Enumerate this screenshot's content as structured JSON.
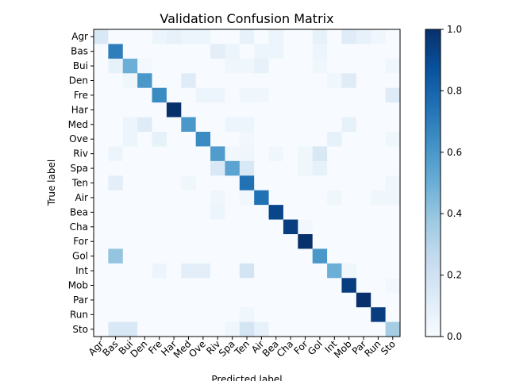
{
  "chart_data": {
    "type": "heatmap",
    "title": "Validation Confusion Matrix",
    "xlabel": "Predicted label",
    "ylabel": "True label",
    "labels": [
      "Agr",
      "Bas",
      "Bui",
      "Den",
      "Fre",
      "Har",
      "Med",
      "Ove",
      "Riv",
      "Spa",
      "Ten",
      "Air",
      "Bea",
      "Cha",
      "For",
      "Gol",
      "Int",
      "Mob",
      "Par",
      "Run",
      "Sto"
    ],
    "colorbar": {
      "min": 0.0,
      "max": 1.0,
      "ticks": [
        "0.0",
        "0.2",
        "0.4",
        "0.6",
        "0.8",
        "1.0"
      ]
    },
    "colormap": [
      "#f7fbff",
      "#deebf7",
      "#c6dbef",
      "#9ecae1",
      "#6baed6",
      "#4292c6",
      "#2171b5",
      "#08519c",
      "#08306b"
    ],
    "matrix": [
      [
        0.15,
        0,
        0,
        0,
        0.05,
        0.08,
        0.05,
        0.05,
        0,
        0,
        0.08,
        0,
        0.05,
        0,
        0,
        0.08,
        0,
        0.12,
        0.08,
        0.04,
        0
      ],
      [
        0,
        0.7,
        0,
        0,
        0,
        0,
        0,
        0,
        0.1,
        0.05,
        0,
        0.05,
        0.05,
        0,
        0,
        0.05,
        0,
        0,
        0,
        0,
        0
      ],
      [
        0,
        0.08,
        0.5,
        0.02,
        0,
        0,
        0,
        0,
        0,
        0.04,
        0.04,
        0.08,
        0,
        0,
        0,
        0.04,
        0,
        0,
        0,
        0,
        0.04
      ],
      [
        0,
        0,
        0.04,
        0.6,
        0,
        0,
        0.12,
        0,
        0,
        0,
        0,
        0,
        0,
        0,
        0,
        0,
        0.04,
        0.12,
        0,
        0,
        0
      ],
      [
        0,
        0,
        0,
        0,
        0.65,
        0,
        0,
        0.05,
        0.05,
        0,
        0.04,
        0.04,
        0,
        0,
        0,
        0,
        0,
        0,
        0,
        0,
        0.12
      ],
      [
        0,
        0,
        0,
        0,
        0,
        1.0,
        0,
        0,
        0,
        0,
        0,
        0,
        0,
        0,
        0,
        0,
        0,
        0,
        0,
        0,
        0
      ],
      [
        0,
        0,
        0.05,
        0.12,
        0,
        0,
        0.6,
        0,
        0,
        0.05,
        0.05,
        0,
        0,
        0,
        0,
        0,
        0,
        0.08,
        0,
        0,
        0
      ],
      [
        0,
        0,
        0.05,
        0,
        0.08,
        0,
        0,
        0.65,
        0,
        0,
        0.03,
        0,
        0,
        0,
        0,
        0,
        0.08,
        0,
        0,
        0,
        0.04
      ],
      [
        0,
        0.05,
        0,
        0,
        0,
        0,
        0,
        0,
        0.58,
        0.03,
        0.04,
        0,
        0.04,
        0,
        0.04,
        0.15,
        0,
        0,
        0,
        0,
        0
      ],
      [
        0,
        0,
        0,
        0,
        0,
        0,
        0,
        0,
        0.15,
        0.55,
        0.15,
        0,
        0,
        0,
        0.04,
        0.08,
        0,
        0,
        0,
        0,
        0
      ],
      [
        0,
        0.1,
        0,
        0,
        0,
        0,
        0.04,
        0,
        0,
        0,
        0.75,
        0,
        0,
        0,
        0,
        0,
        0,
        0,
        0,
        0,
        0.04
      ],
      [
        0,
        0,
        0,
        0,
        0,
        0,
        0,
        0,
        0.04,
        0,
        0.03,
        0.75,
        0,
        0,
        0,
        0,
        0.04,
        0,
        0,
        0.04,
        0.04
      ],
      [
        0,
        0,
        0,
        0,
        0,
        0,
        0,
        0,
        0.05,
        0,
        0,
        0,
        0.92,
        0,
        0,
        0,
        0,
        0,
        0,
        0,
        0
      ],
      [
        0,
        0,
        0,
        0,
        0,
        0,
        0,
        0,
        0,
        0,
        0,
        0,
        0,
        0.95,
        0.03,
        0,
        0,
        0,
        0,
        0,
        0
      ],
      [
        0,
        0,
        0,
        0,
        0,
        0,
        0,
        0,
        0,
        0,
        0,
        0,
        0,
        0,
        1.0,
        0,
        0,
        0,
        0,
        0,
        0
      ],
      [
        0,
        0.4,
        0,
        0,
        0,
        0,
        0,
        0,
        0,
        0,
        0,
        0,
        0,
        0,
        0,
        0.6,
        0,
        0,
        0,
        0,
        0
      ],
      [
        0,
        0,
        0,
        0,
        0.05,
        0,
        0.1,
        0.1,
        0,
        0,
        0.18,
        0,
        0,
        0,
        0,
        0,
        0.5,
        0.04,
        0,
        0,
        0
      ],
      [
        0,
        0,
        0,
        0,
        0,
        0,
        0,
        0,
        0,
        0,
        0,
        0,
        0,
        0,
        0,
        0,
        0,
        0.95,
        0,
        0,
        0.03
      ],
      [
        0,
        0,
        0,
        0,
        0,
        0,
        0,
        0,
        0,
        0,
        0,
        0,
        0,
        0,
        0,
        0,
        0,
        0,
        1.0,
        0,
        0
      ],
      [
        0,
        0,
        0,
        0,
        0,
        0,
        0,
        0,
        0,
        0,
        0.04,
        0,
        0,
        0,
        0,
        0,
        0,
        0,
        0,
        0.95,
        0
      ],
      [
        0,
        0.15,
        0.15,
        0,
        0,
        0,
        0,
        0,
        0,
        0.04,
        0.18,
        0.08,
        0,
        0,
        0,
        0,
        0,
        0,
        0,
        0,
        0.35
      ]
    ]
  }
}
